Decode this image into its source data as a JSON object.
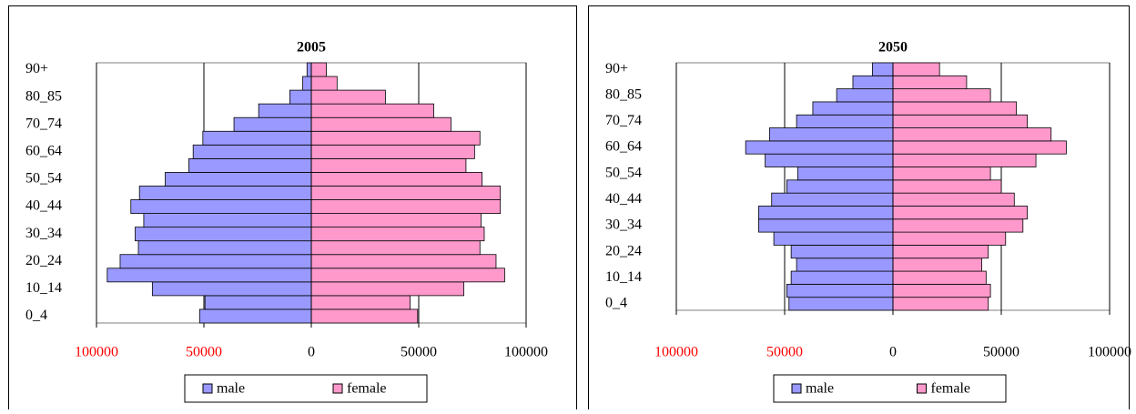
{
  "chart_data": [
    {
      "type": "pyramid",
      "title": "2005",
      "categories": [
        "0_4",
        null,
        "10_14",
        null,
        "20_24",
        null,
        "30_34",
        null,
        "40_44",
        null,
        "50_54",
        null,
        "60_64",
        null,
        "70_74",
        null,
        "80_85",
        null,
        "90+"
      ],
      "series": [
        {
          "name": "male",
          "color": "#9999ff",
          "values": [
            -52000,
            -49500,
            -74000,
            -95000,
            -89000,
            -80500,
            -82000,
            -78000,
            -84000,
            -80000,
            -68000,
            -57000,
            -55000,
            -50500,
            -36000,
            -24500,
            -10000,
            -4000,
            -2000
          ]
        },
        {
          "name": "female",
          "color": "#ff99cc",
          "values": [
            49500,
            46000,
            71000,
            90000,
            86000,
            78500,
            80500,
            79000,
            88000,
            88000,
            79500,
            72000,
            76000,
            78500,
            65000,
            57000,
            34500,
            12000,
            7000
          ]
        }
      ],
      "xlim": [
        -100000,
        100000
      ],
      "xticks": [
        {
          "value": -100000,
          "label": "100000"
        },
        {
          "value": -50000,
          "label": "50000"
        },
        0,
        50000,
        100000
      ],
      "negative_tick_label_color": "#ff0000",
      "grid": true,
      "legend": "bottom"
    },
    {
      "type": "pyramid",
      "title": "2050",
      "categories": [
        "0_4",
        null,
        "10_14",
        null,
        "20_24",
        null,
        "30_34",
        null,
        "40_44",
        null,
        "50_54",
        null,
        "60_64",
        null,
        "70_74",
        null,
        "80_85",
        null,
        "90+"
      ],
      "series": [
        {
          "name": "male",
          "color": "#9999ff",
          "values": [
            -48000,
            -49000,
            -47000,
            -44500,
            -47000,
            -55000,
            -62000,
            -62000,
            -56000,
            -49000,
            -44000,
            -59000,
            -68000,
            -57000,
            -44500,
            -37000,
            -26000,
            -18500,
            -9500
          ]
        },
        {
          "name": "female",
          "color": "#ff99cc",
          "values": [
            44000,
            45000,
            43000,
            41000,
            44000,
            52000,
            60000,
            62000,
            56000,
            50000,
            45000,
            66000,
            80000,
            73000,
            62000,
            57000,
            45000,
            34000,
            21500
          ]
        }
      ],
      "xlim": [
        -100000,
        100000
      ],
      "xticks": [
        {
          "value": -100000,
          "label": "100000"
        },
        {
          "value": -50000,
          "label": "50000"
        },
        0,
        50000,
        100000
      ],
      "negative_tick_label_color": "#ff0000",
      "grid": true,
      "legend": "bottom"
    }
  ]
}
